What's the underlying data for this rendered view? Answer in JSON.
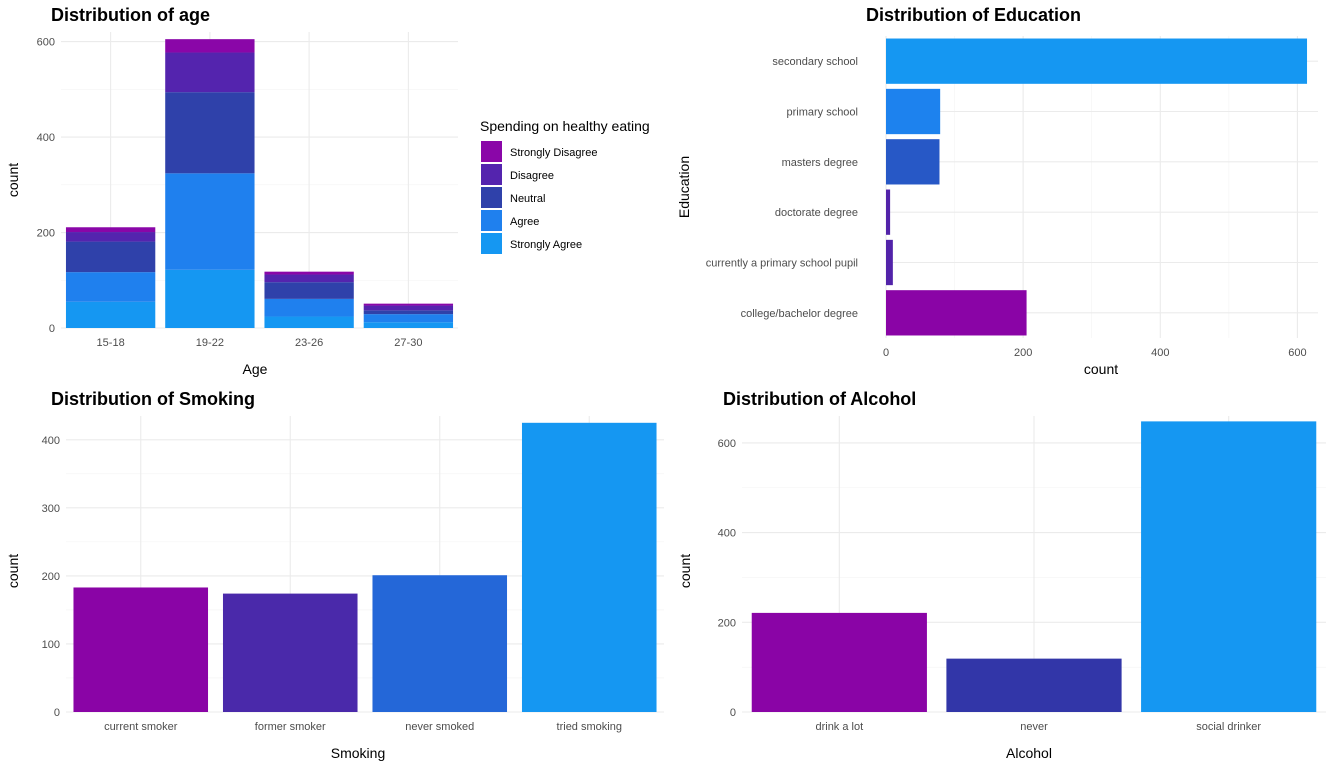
{
  "chart_data": [
    {
      "id": "age",
      "type": "bar",
      "stacked": true,
      "orientation": "vertical",
      "title": "Distribution of age",
      "xlabel": "Age",
      "ylabel": "count",
      "categories": [
        "15-18",
        "19-22",
        "23-26",
        "27-30"
      ],
      "ylim": [
        0,
        620
      ],
      "yticks": [
        0,
        200,
        400,
        600
      ],
      "legend": {
        "title": "Spending on healthy eating",
        "position": "right",
        "entries": [
          "Strongly Disagree",
          "Disagree",
          "Neutral",
          "Agree",
          "Strongly Agree"
        ]
      },
      "series": [
        {
          "name": "Strongly Agree",
          "color": "#1597f2",
          "values": [
            55,
            122,
            24,
            12
          ]
        },
        {
          "name": "Agree",
          "color": "#1f80ee",
          "values": [
            62,
            202,
            37,
            17
          ]
        },
        {
          "name": "Neutral",
          "color": "#2f41aa",
          "values": [
            64,
            170,
            35,
            8
          ]
        },
        {
          "name": "Disagree",
          "color": "#5424ae",
          "values": [
            20,
            83,
            16,
            10
          ]
        },
        {
          "name": "Strongly Disagree",
          "color": "#8a06a8",
          "values": [
            10,
            28,
            6,
            4
          ]
        }
      ]
    },
    {
      "id": "education",
      "type": "bar",
      "orientation": "horizontal",
      "title": "Distribution of Education",
      "xlabel": "count",
      "ylabel": "Education",
      "categories": [
        "college/bachelor degree",
        "currently a primary school pupil",
        "doctorate degree",
        "masters degree",
        "primary school",
        "secondary school"
      ],
      "values": [
        205,
        10,
        6,
        78,
        79,
        614
      ],
      "colors": [
        "#8a04a6",
        "#5223a9",
        "#5223a9",
        "#2758c6",
        "#1d82ee",
        "#1597f2"
      ],
      "xlim": [
        0,
        630
      ],
      "xticks": [
        0,
        200,
        400,
        600
      ]
    },
    {
      "id": "smoking",
      "type": "bar",
      "orientation": "vertical",
      "title": "Distribution of Smoking",
      "xlabel": "Smoking",
      "ylabel": "count",
      "categories": [
        "current smoker",
        "former smoker",
        "never smoked",
        "tried smoking"
      ],
      "values": [
        183,
        174,
        201,
        425
      ],
      "colors": [
        "#8a04a6",
        "#4a29aa",
        "#2467d8",
        "#1597f2"
      ],
      "ylim": [
        0,
        435
      ],
      "yticks": [
        0,
        100,
        200,
        300,
        400
      ]
    },
    {
      "id": "alcohol",
      "type": "bar",
      "orientation": "vertical",
      "title": "Distribution of Alcohol",
      "xlabel": "Alcohol",
      "ylabel": "count",
      "categories": [
        "drink a lot",
        "never",
        "social drinker"
      ],
      "values": [
        221,
        119,
        648
      ],
      "colors": [
        "#8a04a6",
        "#3236a8",
        "#1597f2"
      ],
      "ylim": [
        0,
        660
      ],
      "yticks": [
        0,
        200,
        400,
        600
      ]
    }
  ]
}
